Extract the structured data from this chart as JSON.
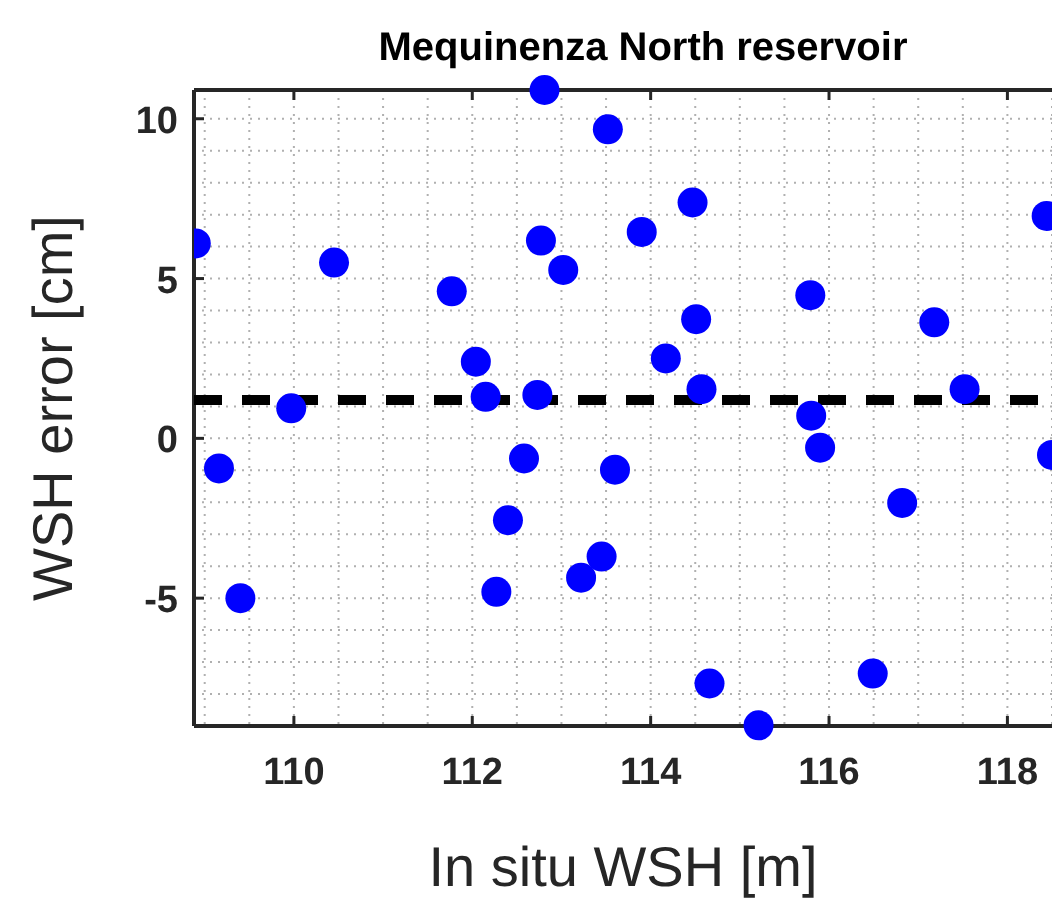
{
  "chart_data": {
    "type": "scatter",
    "title": "Mequinenza North reservoir",
    "xlabel": "In situ WSH [m]",
    "ylabel": "WSH error [cm]",
    "x": [
      108.9,
      109.16,
      109.4,
      109.97,
      110.45,
      111.77,
      112.04,
      112.15,
      112.27,
      112.4,
      112.58,
      112.73,
      112.77,
      112.81,
      113.02,
      113.22,
      113.45,
      113.52,
      113.6,
      113.9,
      114.17,
      114.47,
      114.51,
      114.57,
      114.66,
      115.21,
      115.79,
      115.8,
      115.9,
      116.49,
      116.82,
      117.18,
      117.52,
      118.44,
      118.5
    ],
    "series": [
      {
        "color": "#0000ff",
        "values": [
          6.1,
          -0.94,
          -5.0,
          0.94,
          5.5,
          4.6,
          2.4,
          1.3,
          -4.8,
          -2.56,
          -0.63,
          1.36,
          6.19,
          10.9,
          5.27,
          -4.36,
          -3.7,
          9.67,
          -0.98,
          6.46,
          2.5,
          7.38,
          3.73,
          1.54,
          -7.67,
          -8.98,
          4.48,
          0.71,
          -0.29,
          -7.36,
          -2.02,
          3.63,
          1.54,
          6.96,
          -0.52
        ]
      }
    ],
    "xlim": [
      108.88,
      118.5
    ],
    "ylim": [
      -9,
      10.9
    ],
    "xticks": [
      110,
      112,
      114,
      116,
      118
    ],
    "yticks": [
      -5,
      0,
      5,
      10
    ],
    "grid": true,
    "marker": "circle",
    "ref_lines": [
      {
        "axis": "y",
        "value": 1.2,
        "color": "#000000",
        "line_style": "dashed"
      }
    ]
  }
}
